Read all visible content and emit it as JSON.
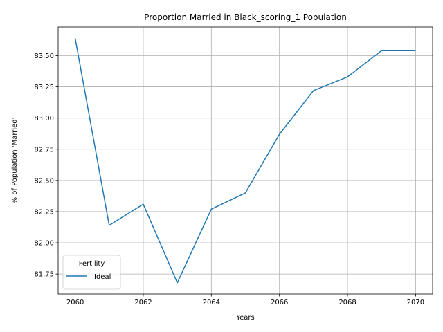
{
  "chart_data": {
    "type": "line",
    "title": "Proportion Married in Black_scoring_1 Population",
    "xlabel": "Years",
    "ylabel": "% of Population 'Married'",
    "xlim": [
      2059.5,
      2070.5
    ],
    "ylim": [
      81.59,
      83.73
    ],
    "xticks": [
      2060,
      2062,
      2064,
      2066,
      2068,
      2070
    ],
    "xtick_labels": [
      "2060",
      "2062",
      "2064",
      "2066",
      "2068",
      "2070"
    ],
    "yticks": [
      81.75,
      82.0,
      82.25,
      82.5,
      82.75,
      83.0,
      83.25,
      83.5
    ],
    "ytick_labels": [
      "81.75",
      "82.00",
      "82.25",
      "82.50",
      "82.75",
      "83.00",
      "83.25",
      "83.50"
    ],
    "grid": true,
    "legend": {
      "title": "Fertility",
      "placement": "lower-left"
    },
    "series": [
      {
        "name": "Ideal",
        "color": "#1f77b4",
        "x": [
          2060,
          2061,
          2062,
          2063,
          2064,
          2065,
          2066,
          2067,
          2068,
          2069,
          2070
        ],
        "y": [
          83.64,
          82.14,
          82.31,
          81.68,
          82.27,
          82.4,
          82.87,
          83.22,
          83.33,
          83.54,
          83.54
        ]
      }
    ]
  }
}
